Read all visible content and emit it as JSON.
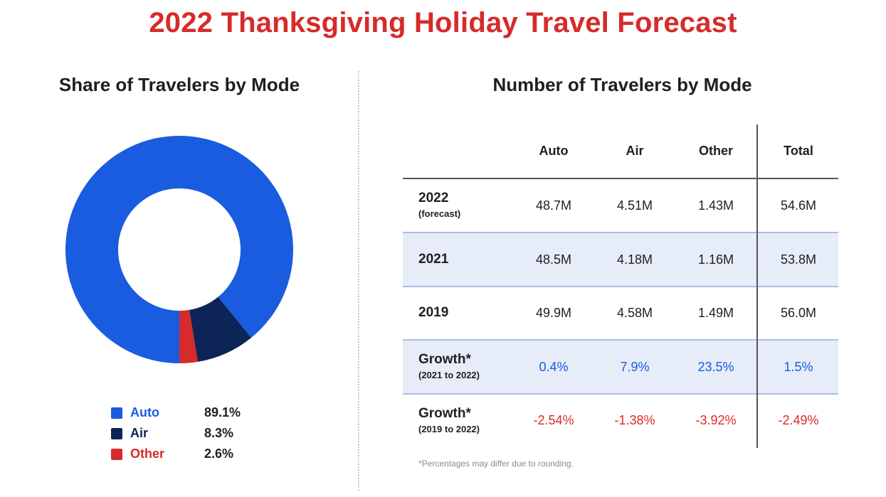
{
  "title": "2022 Thanksgiving Holiday Travel Forecast",
  "left_title": "Share of Travelers by Mode",
  "right_title": "Number of Travelers by Mode",
  "colors": {
    "title": "#d72a2a",
    "auto": "#1a5ce0",
    "air": "#0d2459",
    "other": "#d72a2a",
    "positive": "#1a5ce0",
    "negative": "#d72a2a",
    "row_shade": "#e6ecf8"
  },
  "legend": [
    {
      "label": "Auto",
      "value": "89.1%"
    },
    {
      "label": "Air",
      "value": "8.3%"
    },
    {
      "label": "Other",
      "value": "2.6%"
    }
  ],
  "chart_data": [
    {
      "type": "pie",
      "title": "Share of Travelers by Mode",
      "categories": [
        "Auto",
        "Air",
        "Other"
      ],
      "values": [
        89.1,
        8.3,
        2.6
      ],
      "unit": "%",
      "legend_position": "bottom"
    },
    {
      "type": "table",
      "title": "Number of Travelers by Mode",
      "columns": [
        "Auto",
        "Air",
        "Other",
        "Total"
      ],
      "rows": [
        {
          "label": "2022",
          "sublabel": "(forecast)",
          "values": [
            "48.7M",
            "4.51M",
            "1.43M",
            "54.6M"
          ]
        },
        {
          "label": "2021",
          "sublabel": "",
          "values": [
            "48.5M",
            "4.18M",
            "1.16M",
            "53.8M"
          ]
        },
        {
          "label": "2019",
          "sublabel": "",
          "values": [
            "49.9M",
            "4.58M",
            "1.49M",
            "56.0M"
          ]
        },
        {
          "label": "Growth*",
          "sublabel": "(2021 to 2022)",
          "values": [
            "0.4%",
            "7.9%",
            "23.5%",
            "1.5%"
          ]
        },
        {
          "label": "Growth*",
          "sublabel": "(2019 to 2022)",
          "values": [
            "-2.54%",
            "-1.38%",
            "-3.92%",
            "-2.49%"
          ]
        }
      ]
    }
  ],
  "footnote": "*Percentages may differ due to rounding."
}
